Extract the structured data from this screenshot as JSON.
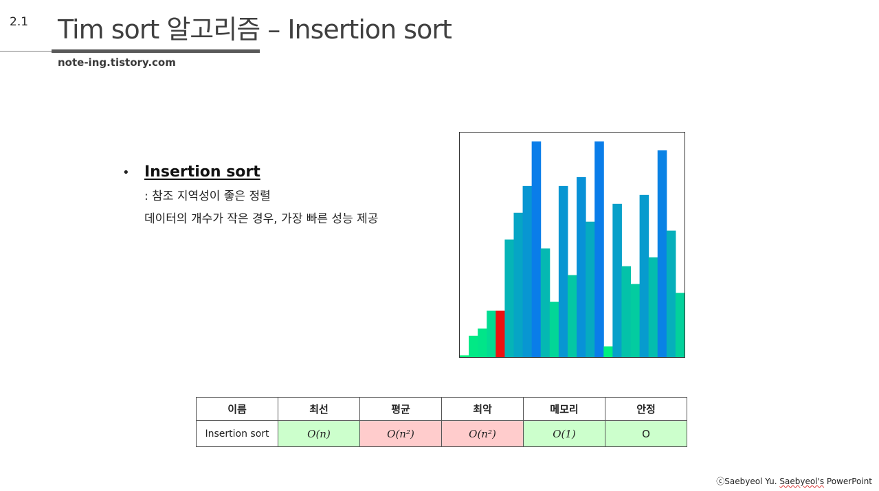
{
  "slide": {
    "number": "2.1",
    "title": "Tim sort 알고리즘 – Insertion sort",
    "site": "note-ing.tistory.com"
  },
  "content": {
    "heading": "Insertion sort",
    "lines": [
      ": 참조 지역성이 좋은 정렬",
      "데이터의 개수가 작은 경우, 가장 빠른 성능 제공"
    ]
  },
  "chart_data": {
    "type": "bar",
    "values": [
      1,
      12,
      16,
      26,
      26,
      66,
      81,
      96,
      121,
      61,
      31,
      96,
      46,
      101,
      76,
      121,
      6,
      86,
      51,
      41,
      91,
      56,
      116,
      71,
      36
    ],
    "highlight_index": 4,
    "ylim": [
      0,
      126
    ],
    "colors": {
      "low": "#00f57a",
      "high": "#0a78ee",
      "highlight": "#ee1111"
    }
  },
  "table": {
    "headers": [
      "이름",
      "최선",
      "평균",
      "최악",
      "메모리",
      "안정"
    ],
    "row": {
      "name": "Insertion sort",
      "best": "O(n)",
      "average": "O(n²)",
      "worst": "O(n²)",
      "memory": "O(1)",
      "stable": "O"
    },
    "colors": {
      "good": "#ccffcc",
      "bad": "#ffcccc"
    }
  },
  "footer": {
    "copyright": "ⓒSaebyeol Yu.",
    "brand": "Saebyeol's",
    "suffix": "PowerPoint"
  }
}
